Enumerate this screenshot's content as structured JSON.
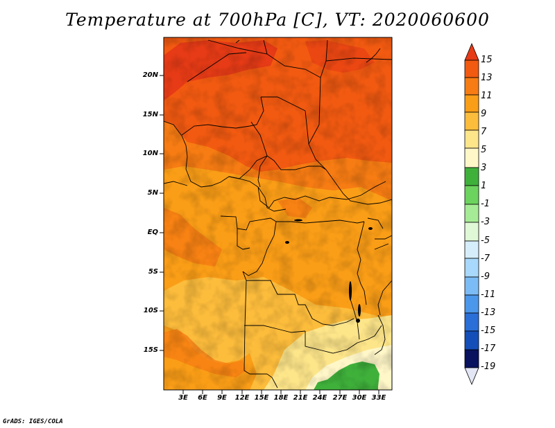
{
  "title": "Temperature at 700hPa [C], VT: 2020060600",
  "credit": "GrADS: IGES/COLA",
  "map": {
    "lat_labels": [
      "20N",
      "15N",
      "10N",
      "5N",
      "EQ",
      "5S",
      "10S",
      "15S"
    ],
    "lon_labels": [
      "3E",
      "6E",
      "9E",
      "12E",
      "15E",
      "18E",
      "21E",
      "24E",
      "27E",
      "30E",
      "33E"
    ],
    "extent": {
      "lon_min": 0,
      "lon_max": 35,
      "lat_min": -20,
      "lat_max": 25
    }
  },
  "colorbar": {
    "labels": [
      "15",
      "13",
      "11",
      "9",
      "7",
      "5",
      "3",
      "1",
      "-1",
      "-3",
      "-5",
      "-7",
      "-9",
      "-11",
      "-13",
      "-15",
      "-17",
      "-19"
    ],
    "colors": [
      "#e63b16",
      "#f25a11",
      "#f77c13",
      "#fb9e17",
      "#fdbd3c",
      "#fde58a",
      "#fff7c8",
      "#3fb13b",
      "#6cd35e",
      "#a6ec96",
      "#e0f8d6",
      "#d6eefc",
      "#a8d8fb",
      "#7cbcf6",
      "#4b97ec",
      "#2a6fd8",
      "#144fb9",
      "#082f91",
      "#08125e",
      "#e3e6f5"
    ]
  }
}
